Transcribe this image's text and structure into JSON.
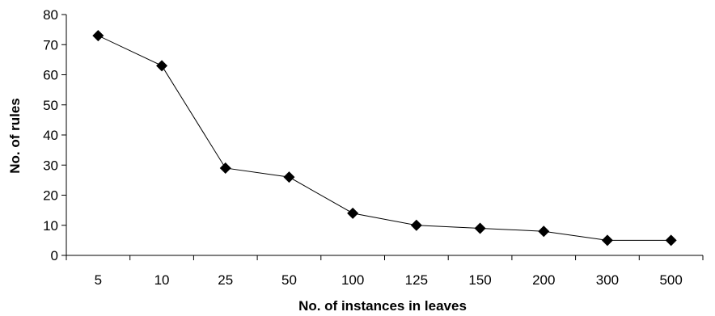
{
  "chart_data": {
    "type": "line",
    "title": "",
    "xlabel": "No. of instances in leaves",
    "ylabel": "No. of rules",
    "categories": [
      "5",
      "10",
      "25",
      "50",
      "100",
      "125",
      "150",
      "200",
      "300",
      "500"
    ],
    "series": [
      {
        "values": [
          73,
          63,
          29,
          26,
          14,
          10,
          9,
          8,
          5,
          5
        ],
        "color": "#000000",
        "marker": "diamond"
      }
    ],
    "ylim": [
      0,
      80
    ],
    "yticks": [
      0,
      10,
      20,
      30,
      40,
      50,
      60,
      70,
      80
    ],
    "grid": false,
    "legend": "none"
  }
}
